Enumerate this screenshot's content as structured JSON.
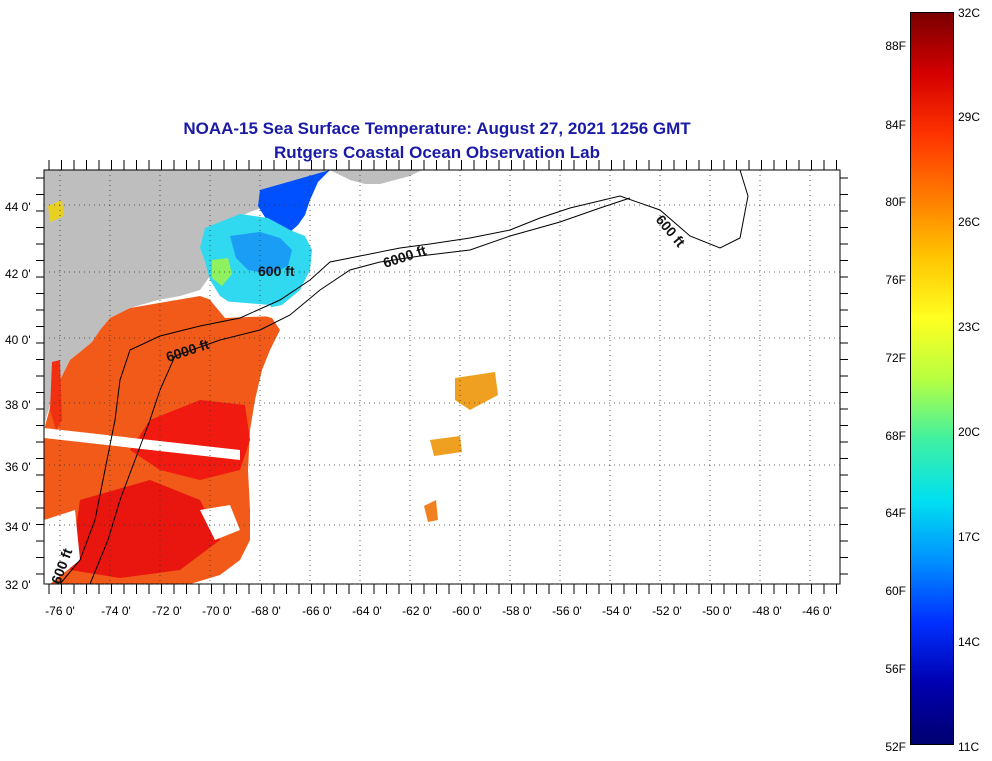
{
  "title": {
    "line1": "NOAA-15 Sea Surface Temperature:  August 27, 2021 1256 GMT",
    "line2": "Rutgers Coastal Ocean Observation Lab"
  },
  "map": {
    "lat_labels": [
      "44 0'",
      "42 0'",
      "40 0'",
      "38 0'",
      "36 0'",
      "34 0'",
      "32 0'"
    ],
    "lon_labels": [
      "-76 0'",
      "-74 0'",
      "-72 0'",
      "-70 0'",
      "-68 0'",
      "-66 0'",
      "-64 0'",
      "-62 0'",
      "-60 0'",
      "-58 0'",
      "-56 0'",
      "-54 0'",
      "-52 0'",
      "-50 0'",
      "-48 0'",
      "-46 0'"
    ],
    "contour_labels": {
      "c600_a": "600 ft",
      "c600_b": "600 ft",
      "c6000_a": "6000 ft",
      "c6000_b": "6000 ft",
      "c600_c": "600 ft"
    },
    "land_color": "#bebebe"
  },
  "colorbar": {
    "fahrenheit_labels": [
      "88F",
      "84F",
      "80F",
      "76F",
      "72F",
      "68F",
      "64F",
      "60F",
      "56F",
      "52F"
    ],
    "celsius_labels": [
      "32C",
      "29C",
      "26C",
      "23C",
      "20C",
      "17C",
      "14C",
      "11C"
    ],
    "stops": [
      "#7a0000",
      "#d40000",
      "#ff3300",
      "#ff7a00",
      "#ffc400",
      "#ffff20",
      "#b8ff40",
      "#40f0a0",
      "#00e0f0",
      "#0090ff",
      "#0030ff",
      "#0000b0",
      "#000070"
    ]
  }
}
